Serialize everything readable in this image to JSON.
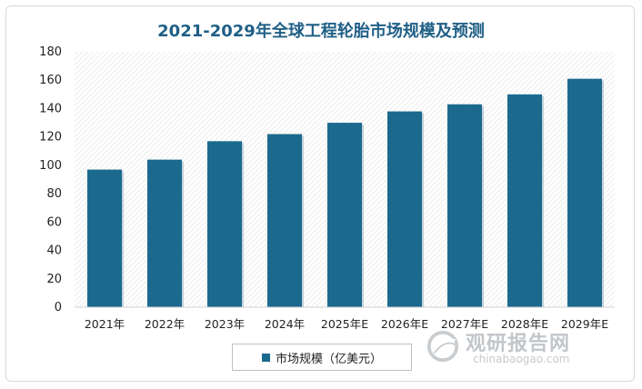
{
  "title": "2021-2029年全球工程轮胎市场规模及预测",
  "chart_data": {
    "type": "bar",
    "categories": [
      "2021年",
      "2022年",
      "2023年",
      "2024年",
      "2025年E",
      "2026年E",
      "2027年E",
      "2028年E",
      "2029年E"
    ],
    "series": [
      {
        "name": "市场规模（亿美元）",
        "values": [
          97,
          104,
          117,
          122,
          130,
          138,
          143,
          150,
          161
        ]
      }
    ],
    "ylim": [
      0,
      180
    ],
    "yticks": [
      0,
      20,
      40,
      60,
      80,
      100,
      120,
      140,
      160,
      180
    ],
    "grid": false,
    "legend": "bottom",
    "bar_color": "#1b6a8e",
    "background_pattern": "diagonal-hatch"
  },
  "legend_label": "市场规模（亿美元）",
  "watermark": {
    "name_cn": "观研报告网",
    "domain": "chinabaogao.com"
  }
}
